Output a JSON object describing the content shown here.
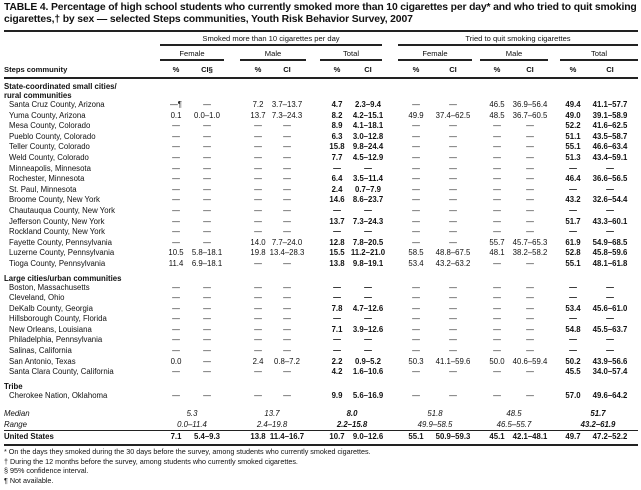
{
  "title": "TABLE 4. Percentage of high school students who currently smoked more than 10 cigarettes per day* and who tried to quit smoking cigarettes,† by sex — selected Steps communities, Youth Risk Behavior Survey, 2007",
  "headers": {
    "group1": "Smoked more than 10 cigarettes per day",
    "group2": "Tried to quit smoking cigarettes",
    "female": "Female",
    "male": "Male",
    "total": "Total",
    "steps_community": "Steps community",
    "pct": "%",
    "ci_first": "CI§",
    "ci": "CI"
  },
  "sections": [
    {
      "title_lines": [
        "State-coordinated small cities/",
        "rural communities"
      ],
      "rows": [
        {
          "name": "Santa Cruz County, Arizona",
          "values": [
            "—¶",
            "—",
            "7.2",
            "3.7–13.7",
            "4.7",
            "2.3–9.4",
            "—",
            "—",
            "46.5",
            "36.9–56.4",
            "49.4",
            "41.1–57.7"
          ]
        },
        {
          "name": "Yuma County, Arizona",
          "values": [
            "0.1",
            "0.0–1.0",
            "13.7",
            "7.3–24.3",
            "8.2",
            "4.2–15.1",
            "49.9",
            "37.4–62.5",
            "48.5",
            "36.7–60.5",
            "49.0",
            "39.1–58.9"
          ]
        },
        {
          "name": "Mesa County, Colorado",
          "values": [
            "—",
            "—",
            "—",
            "—",
            "8.9",
            "4.1–18.1",
            "—",
            "—",
            "—",
            "—",
            "52.2",
            "41.6–62.5"
          ]
        },
        {
          "name": "Pueblo County, Colorado",
          "values": [
            "—",
            "—",
            "—",
            "—",
            "6.3",
            "3.0–12.8",
            "—",
            "—",
            "—",
            "—",
            "51.1",
            "43.5–58.7"
          ]
        },
        {
          "name": "Teller County, Colorado",
          "values": [
            "—",
            "—",
            "—",
            "—",
            "15.8",
            "9.8–24.4",
            "—",
            "—",
            "—",
            "—",
            "55.1",
            "46.6–63.4"
          ]
        },
        {
          "name": "Weld County, Colorado",
          "values": [
            "—",
            "—",
            "—",
            "—",
            "7.7",
            "4.5–12.9",
            "—",
            "—",
            "—",
            "—",
            "51.3",
            "43.4–59.1"
          ]
        },
        {
          "name": "Minneapolis, Minnesota",
          "values": [
            "—",
            "—",
            "—",
            "—",
            "—",
            "—",
            "—",
            "—",
            "—",
            "—",
            "—",
            "—"
          ]
        },
        {
          "name": "Rochester, Minnesota",
          "values": [
            "—",
            "—",
            "—",
            "—",
            "6.4",
            "3.5–11.4",
            "—",
            "—",
            "—",
            "—",
            "46.4",
            "36.6–56.5"
          ]
        },
        {
          "name": "St. Paul, Minnesota",
          "values": [
            "—",
            "—",
            "—",
            "—",
            "2.4",
            "0.7–7.9",
            "—",
            "—",
            "—",
            "—",
            "—",
            "—"
          ]
        },
        {
          "name": "Broome County, New York",
          "values": [
            "—",
            "—",
            "—",
            "—",
            "14.6",
            "8.6–23.7",
            "—",
            "—",
            "—",
            "—",
            "43.2",
            "32.6–54.4"
          ]
        },
        {
          "name": "Chautauqua County, New York",
          "values": [
            "—",
            "—",
            "—",
            "—",
            "—",
            "—",
            "—",
            "—",
            "—",
            "—",
            "—",
            "—"
          ]
        },
        {
          "name": "Jefferson County, New York",
          "values": [
            "—",
            "—",
            "—",
            "—",
            "13.7",
            "7.3–24.3",
            "—",
            "—",
            "—",
            "—",
            "51.7",
            "43.3–60.1"
          ]
        },
        {
          "name": "Rockland County, New York",
          "values": [
            "—",
            "—",
            "—",
            "—",
            "—",
            "—",
            "—",
            "—",
            "—",
            "—",
            "—",
            "—"
          ]
        },
        {
          "name": "Fayette County, Pennsylvania",
          "values": [
            "—",
            "—",
            "14.0",
            "7.7–24.0",
            "12.8",
            "7.8–20.5",
            "—",
            "—",
            "55.7",
            "45.7–65.3",
            "61.9",
            "54.9–68.5"
          ]
        },
        {
          "name": "Luzerne County, Pennsylvania",
          "values": [
            "10.5",
            "5.8–18.1",
            "19.8",
            "13.4–28.3",
            "15.5",
            "11.2–21.0",
            "58.5",
            "48.8–67.5",
            "48.1",
            "38.2–58.2",
            "52.8",
            "45.8–59.6"
          ]
        },
        {
          "name": "Tioga County, Pennsylvania",
          "values": [
            "11.4",
            "6.9–18.1",
            "—",
            "—",
            "13.8",
            "9.8–19.1",
            "53.4",
            "43.2–63.2",
            "—",
            "—",
            "55.1",
            "48.1–61.8"
          ]
        }
      ]
    },
    {
      "title_lines": [
        "Large cities/urban communities"
      ],
      "rows": [
        {
          "name": "Boston, Massachusetts",
          "values": [
            "—",
            "—",
            "—",
            "—",
            "—",
            "—",
            "—",
            "—",
            "—",
            "—",
            "—",
            "—"
          ]
        },
        {
          "name": "Cleveland, Ohio",
          "values": [
            "—",
            "—",
            "—",
            "—",
            "—",
            "—",
            "—",
            "—",
            "—",
            "—",
            "—",
            "—"
          ]
        },
        {
          "name": "DeKalb County, Georgia",
          "values": [
            "—",
            "—",
            "—",
            "—",
            "7.8",
            "4.7–12.6",
            "—",
            "—",
            "—",
            "—",
            "53.4",
            "45.6–61.0"
          ]
        },
        {
          "name": "Hillsborough County, Florida",
          "values": [
            "—",
            "—",
            "—",
            "—",
            "—",
            "—",
            "—",
            "—",
            "—",
            "—",
            "—",
            "—"
          ]
        },
        {
          "name": "New Orleans, Louisiana",
          "values": [
            "—",
            "—",
            "—",
            "—",
            "7.1",
            "3.9–12.6",
            "—",
            "—",
            "—",
            "—",
            "54.8",
            "45.5–63.7"
          ]
        },
        {
          "name": "Philadelphia, Pennsylvania",
          "values": [
            "—",
            "—",
            "—",
            "—",
            "—",
            "—",
            "—",
            "—",
            "—",
            "—",
            "—",
            "—"
          ]
        },
        {
          "name": "Salinas, California",
          "values": [
            "—",
            "—",
            "—",
            "—",
            "—",
            "—",
            "—",
            "—",
            "—",
            "—",
            "—",
            "—"
          ]
        },
        {
          "name": "San Antonio, Texas",
          "values": [
            "0.0",
            "—",
            "2.4",
            "0.8–7.2",
            "2.2",
            "0.9–5.2",
            "50.3",
            "41.1–59.6",
            "50.0",
            "40.6–59.4",
            "50.2",
            "43.9–56.6"
          ]
        },
        {
          "name": "Santa Clara County, California",
          "values": [
            "—",
            "—",
            "—",
            "—",
            "4.2",
            "1.6–10.6",
            "—",
            "—",
            "—",
            "—",
            "45.5",
            "34.0–57.4"
          ]
        }
      ]
    },
    {
      "title_lines": [
        "Tribe"
      ],
      "rows": [
        {
          "name": "Cherokee Nation, Oklahoma",
          "values": [
            "—",
            "—",
            "—",
            "—",
            "9.9",
            "5.6–16.9",
            "—",
            "—",
            "—",
            "—",
            "57.0",
            "49.6–64.2"
          ]
        }
      ]
    }
  ],
  "median": {
    "label": "Median",
    "values": [
      "5.3",
      "13.7",
      "8.0",
      "51.8",
      "48.5",
      "51.7"
    ]
  },
  "range": {
    "label": "Range",
    "values": [
      "0.0–11.4",
      "2.4–19.8",
      "2.2–15.8",
      "49.9–58.5",
      "46.5–55.7",
      "43.2–61.9"
    ]
  },
  "united_states": {
    "name": "United States",
    "values": [
      "7.1",
      "5.4–9.3",
      "13.8",
      "11.4–16.7",
      "10.7",
      "9.0–12.6",
      "55.1",
      "50.9–59.3",
      "45.1",
      "42.1–48.1",
      "49.7",
      "47.2–52.2"
    ]
  },
  "footnotes": [
    "* On the days they smoked during the 30 days before the survey, among students who currently smoked cigarettes.",
    "† During the 12 months before the survey, among students who currently smoked cigarettes.",
    "§ 95% confidence interval.",
    "¶ Not available."
  ]
}
